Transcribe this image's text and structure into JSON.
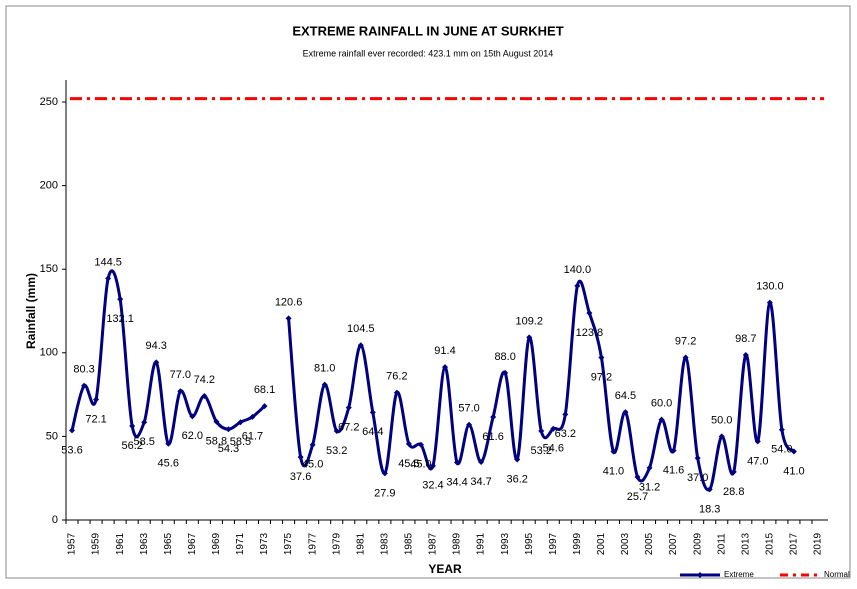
{
  "chart_data": {
    "type": "line",
    "title": "EXTREME RAINFALL IN JUNE AT SURKHET",
    "subtitle": "Extreme rainfall ever recorded: 423.1 mm on 15th August 2014",
    "x_label": "YEAR",
    "y_label": "Rainfall (mm)",
    "categories": [
      1957,
      null,
      1959,
      null,
      1961,
      null,
      1963,
      null,
      1965,
      null,
      1967,
      null,
      1969,
      null,
      1971,
      null,
      1973,
      null,
      1975,
      null,
      1977,
      null,
      1979,
      null,
      1981,
      null,
      1983,
      null,
      1985,
      null,
      1987,
      null,
      1989,
      null,
      1991,
      null,
      1993,
      null,
      1995,
      null,
      1997,
      null,
      1999,
      null,
      2001,
      null,
      2003,
      null,
      2005,
      null,
      2007,
      null,
      2009,
      null,
      2011,
      null,
      2013,
      null,
      2015,
      null,
      2017,
      null,
      2019
    ],
    "series": [
      {
        "name": "Extreme",
        "color": "#000080",
        "values": [
          53.6,
          80.3,
          72.1,
          144.5,
          132.1,
          56.2,
          58.5,
          94.3,
          45.6,
          77.0,
          62.0,
          74.2,
          58.8,
          54.3,
          58.5,
          61.7,
          68.1,
          null,
          120.6,
          37.6,
          45.0,
          81.0,
          53.2,
          67.2,
          104.5,
          64.4,
          27.9,
          76.2,
          45.5,
          45.0,
          32.4,
          91.4,
          34.4,
          57.0,
          34.7,
          61.6,
          88.0,
          36.2,
          109.2,
          53.2,
          54.6,
          63.2,
          140.0,
          123.8,
          97.2,
          41.0,
          64.5,
          25.7,
          31.2,
          60.0,
          41.6,
          97.2,
          37.0,
          18.3,
          50.0,
          28.8,
          98.7,
          47.0,
          130.0,
          54.0,
          41.0,
          null,
          null
        ],
        "value_labels": [
          "53.6",
          "80.3",
          "72.1",
          "144.5",
          "132.1",
          "56.2",
          "58.5",
          "94.3",
          "45.6",
          "77.0",
          "62.0",
          "74.2",
          "58.8",
          "54.3",
          "58.5",
          "61.7",
          "68.1",
          null,
          "120.6",
          "37.6",
          "45.0",
          "81.0",
          "53.2",
          "67.2",
          "104.5",
          "64.4",
          "27.9",
          "76.2",
          "45.5",
          "45.0",
          "32.4",
          "91.4",
          "34.4",
          "57.0",
          "34.7",
          "61.6",
          "88.0",
          "36.2",
          "109.2",
          "53.2",
          "54.6",
          "63.2",
          "140.0",
          "123.8",
          "97.2",
          "41.0",
          "64.5",
          "25.7",
          "31.2",
          "60.0",
          "41.6",
          "97.2",
          "37.0",
          "18.3",
          "50.0",
          "28.8",
          "98.7",
          "47.0",
          "130.0",
          "54.0",
          "41.0",
          null,
          null
        ]
      }
    ],
    "reference_line": {
      "name": "Normal",
      "color": "#ff0000",
      "value": 252
    },
    "ylim": [
      0,
      250
    ],
    "yticks": [
      0,
      50,
      100,
      150,
      200,
      250
    ],
    "legend": "bottom-right"
  }
}
